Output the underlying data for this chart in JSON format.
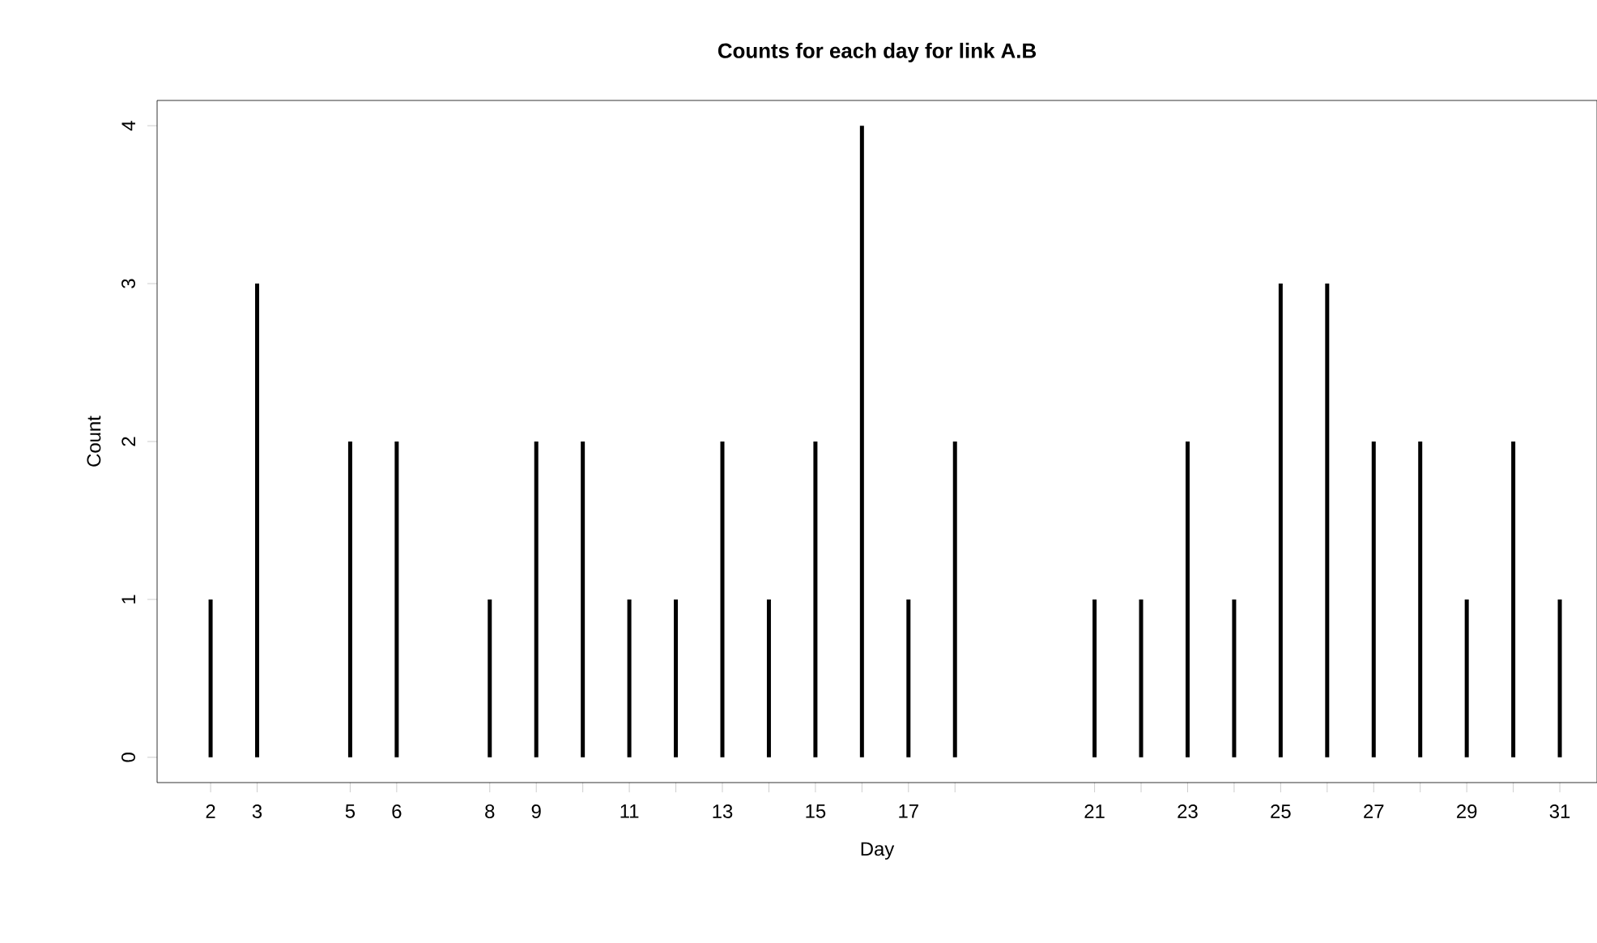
{
  "chart_data": {
    "type": "bar",
    "title": "Counts for each day for link A.B",
    "xlabel": "Day",
    "ylabel": "Count",
    "x": [
      2,
      3,
      5,
      6,
      8,
      9,
      10,
      11,
      12,
      13,
      14,
      15,
      16,
      17,
      18,
      21,
      22,
      23,
      24,
      25,
      26,
      27,
      28,
      29,
      30,
      31
    ],
    "values": [
      1,
      3,
      2,
      2,
      1,
      2,
      2,
      1,
      1,
      2,
      1,
      2,
      4,
      1,
      2,
      1,
      1,
      2,
      1,
      3,
      3,
      2,
      2,
      1,
      2,
      1
    ],
    "color": "#000000",
    "xlim": [
      0.85,
      31.8
    ],
    "ylim": [
      -0.16,
      4.16
    ],
    "xticks": [
      2,
      3,
      5,
      6,
      8,
      9,
      {
        "value": 10,
        "label": null
      },
      11,
      {
        "value": 12,
        "label": null
      },
      13,
      {
        "value": 14,
        "label": null
      },
      15,
      {
        "value": 16,
        "label": null
      },
      17,
      {
        "value": 18,
        "label": null
      },
      21,
      {
        "value": 22,
        "label": null
      },
      23,
      {
        "value": 24,
        "label": null
      },
      25,
      {
        "value": 26,
        "label": null
      },
      27,
      {
        "value": 28,
        "label": null
      },
      29,
      {
        "value": 30,
        "label": null
      },
      31
    ],
    "yticks": [
      0,
      1,
      2,
      3,
      4
    ]
  }
}
